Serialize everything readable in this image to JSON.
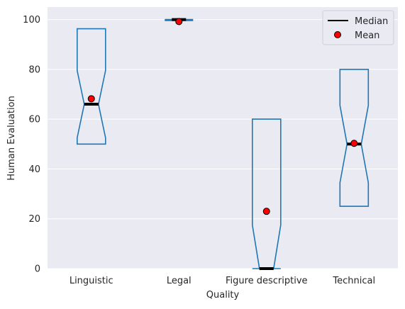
{
  "chart_data": {
    "type": "box",
    "title": "",
    "xlabel": "Quality",
    "ylabel": "Human Evaluation",
    "ylim": [
      0,
      105
    ],
    "yticks": [
      0,
      20,
      40,
      60,
      80,
      100
    ],
    "grid": true,
    "notched": true,
    "categories": [
      "Linguistic",
      "Legal",
      "Figure descriptive",
      "Technical"
    ],
    "boxes": [
      {
        "category": "Linguistic",
        "q1": 50,
        "median": 66,
        "q3": 96.3,
        "notch_low": 52.5,
        "notch_high": 79.5,
        "mean": 68.2
      },
      {
        "category": "Legal",
        "q1": 99.6,
        "median": 100,
        "q3": 100,
        "notch_low": 99.6,
        "notch_high": 100,
        "mean": 99.2
      },
      {
        "category": "Figure descriptive",
        "q1": 0,
        "median": 0,
        "q3": 60,
        "notch_low": 0,
        "notch_high": 17.5,
        "mean": 23
      },
      {
        "category": "Technical",
        "q1": 25,
        "median": 50,
        "q3": 80,
        "notch_low": 34.5,
        "notch_high": 65.5,
        "mean": 50.3
      }
    ],
    "legend": {
      "position": "top-right",
      "entries": [
        "Median",
        "Mean"
      ]
    },
    "colors": {
      "background": "#eaeaf2",
      "grid": "#ffffff",
      "box": "#1f77b4",
      "median": "#000000",
      "mean_fill": "#ff0000",
      "mean_edge": "#000000"
    }
  }
}
